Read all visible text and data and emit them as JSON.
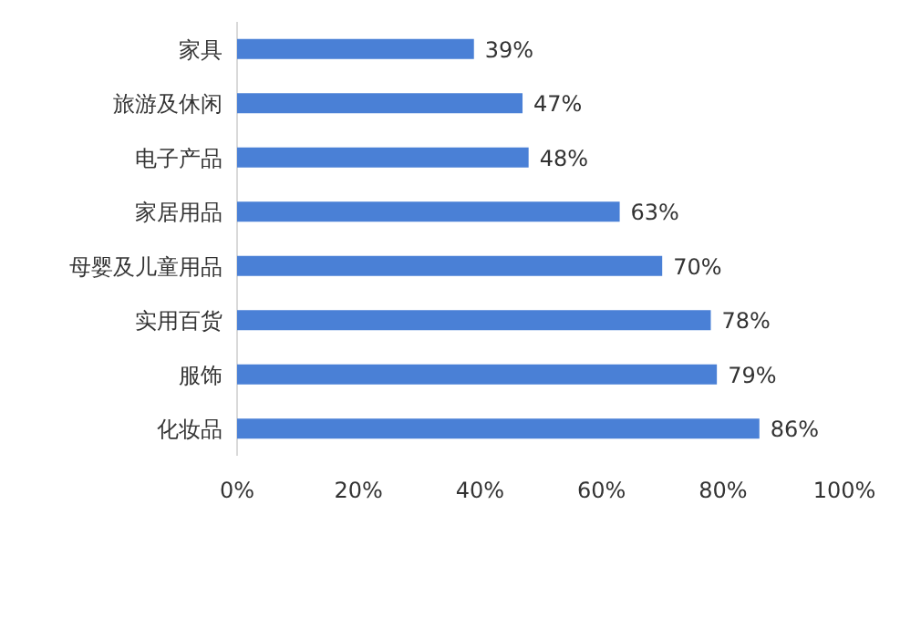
{
  "chart_data": {
    "type": "bar",
    "orientation": "horizontal",
    "categories": [
      "家具",
      "旅游及休闲",
      "电子产品",
      "家居用品",
      "母婴及儿童用品",
      "实用百货",
      "服饰",
      "化妆品"
    ],
    "values": [
      39,
      47,
      48,
      63,
      70,
      78,
      79,
      86
    ],
    "value_labels": [
      "39%",
      "47%",
      "48%",
      "63%",
      "70%",
      "78%",
      "79%",
      "86%"
    ],
    "color": "#4a80d6",
    "xlim": [
      0,
      100
    ],
    "xticks": [
      {
        "value": 0,
        "label": "0%"
      },
      {
        "value": 20,
        "label": "20%"
      },
      {
        "value": 40,
        "label": "40%"
      },
      {
        "value": 60,
        "label": "60%"
      },
      {
        "value": 80,
        "label": "80%"
      },
      {
        "value": 100,
        "label": "100%"
      }
    ],
    "grid": false
  }
}
